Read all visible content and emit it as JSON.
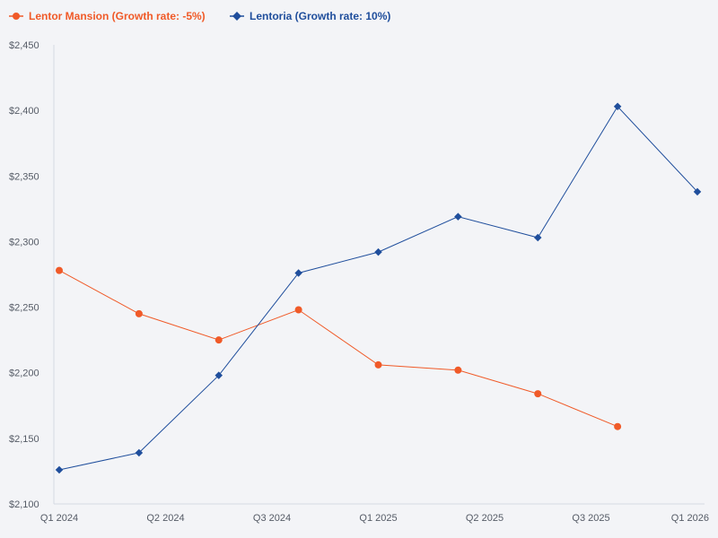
{
  "chart_data": {
    "type": "line",
    "title": "",
    "xlabel": "",
    "ylabel": "",
    "ylim": [
      2100,
      2450
    ],
    "yticks": [
      2100,
      2150,
      2200,
      2250,
      2300,
      2350,
      2400,
      2450
    ],
    "ytick_labels": [
      "$2,100",
      "$2,150",
      "$2,200",
      "$2,250",
      "$2,300",
      "$2,350",
      "$2,400",
      "$2,450"
    ],
    "xlim": [
      0,
      8
    ],
    "xtick_positions": [
      0,
      1.333,
      2.667,
      4,
      5.333,
      6.667,
      8
    ],
    "xtick_labels": [
      "Q1 2024",
      "Q2 2024",
      "Q3 2024",
      "Q1 2025",
      "Q2 2025",
      "Q3 2025",
      "Q1 2026"
    ],
    "legend_position": "top-left",
    "series": [
      {
        "name": "Lentor Mansion (Growth rate: -5%)",
        "color": "#f05a28",
        "marker": "circle",
        "x": [
          0,
          1,
          2,
          3,
          4,
          5,
          6,
          7
        ],
        "values": [
          2278,
          2245,
          2225,
          2248,
          2206,
          2202,
          2184,
          2159
        ]
      },
      {
        "name": "Lentoria (Growth rate: 10%)",
        "color": "#1f4e9c",
        "marker": "diamond",
        "x": [
          0,
          1,
          2,
          3,
          4,
          5,
          6,
          7,
          8
        ],
        "values": [
          2126,
          2139,
          2198,
          2276,
          2292,
          2319,
          2303,
          2403,
          2338
        ]
      }
    ]
  }
}
